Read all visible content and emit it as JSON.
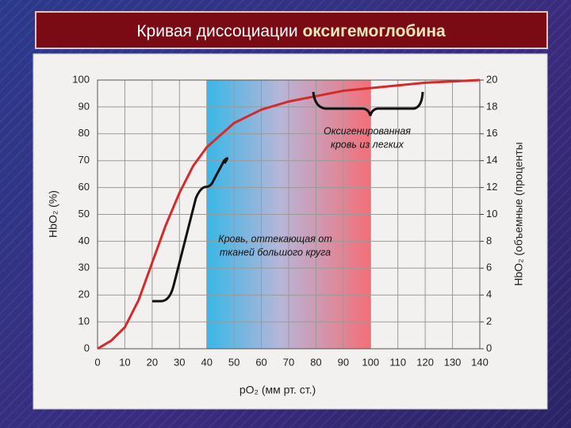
{
  "chart_data": {
    "type": "line",
    "title": [
      "Кривая диссоциации",
      "оксигемоглобина"
    ],
    "x_label": "pO₂ (мм рт. ст.)",
    "y_label": "HbO₂ (%)",
    "y2_label": "HbO₂ (объемные (проценты",
    "x": [
      0,
      5,
      10,
      15,
      20,
      25,
      30,
      35,
      40,
      50,
      60,
      70,
      80,
      90,
      100,
      110,
      120,
      130,
      140
    ],
    "series": [
      {
        "name": "HbO₂",
        "color": "#d42a2a",
        "values": [
          0,
          3,
          8,
          18,
          32,
          46,
          58,
          68,
          75,
          84,
          89,
          92,
          94,
          96,
          97,
          98,
          99,
          99.5,
          100
        ]
      }
    ],
    "shaded_range": [
      40,
      100
    ],
    "annotations": [
      [
        "Оксигенированная",
        "кровь из легких"
      ],
      [
        "Кровь, оттекающая от",
        "тканей большого круга"
      ]
    ],
    "xlim": [
      0,
      140
    ],
    "xticks": [
      0,
      10,
      20,
      30,
      40,
      50,
      60,
      70,
      80,
      90,
      100,
      110,
      120,
      130,
      140
    ],
    "ylim": [
      0,
      100
    ],
    "yticks": [
      0,
      10,
      20,
      30,
      40,
      50,
      60,
      70,
      80,
      90,
      100
    ],
    "y2lim": [
      0,
      20
    ],
    "y2ticks": [
      0,
      2,
      4,
      6,
      8,
      10,
      12,
      14,
      16,
      18,
      20
    ],
    "grid": true
  }
}
